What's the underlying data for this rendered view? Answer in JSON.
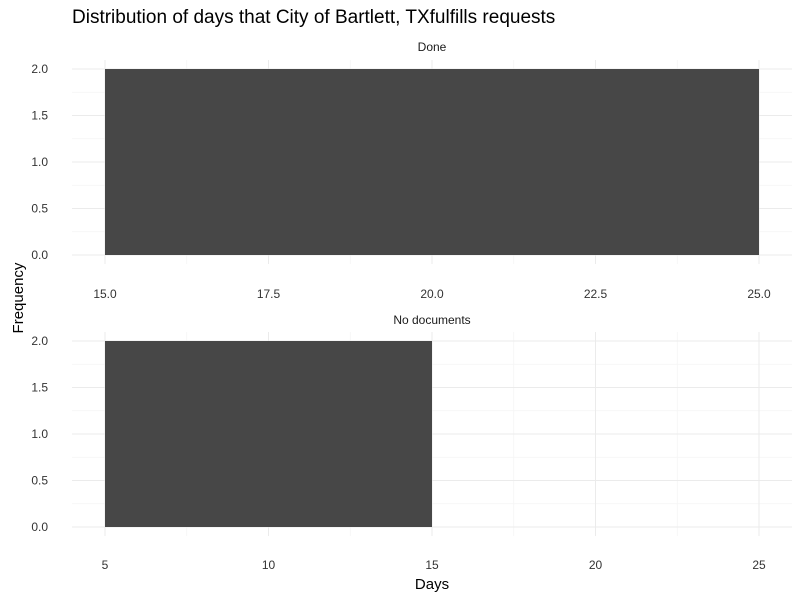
{
  "chart_data": {
    "type": "histogram",
    "title": "Distribution of days that City of Bartlett, TXfulfills requests",
    "xlabel": "Days",
    "ylabel": "Frequency",
    "grid": true,
    "panels": [
      {
        "strip": "Done",
        "bins": [
          {
            "x0": 15,
            "x1": 25,
            "count": 2
          }
        ],
        "xlim": [
          15,
          25
        ],
        "ylim": [
          0,
          2
        ],
        "xticks": [
          "15.0",
          "17.5",
          "20.0",
          "22.5",
          "25.0"
        ],
        "yticks": [
          "0.0",
          "0.5",
          "1.0",
          "1.5",
          "2.0"
        ]
      },
      {
        "strip": "No documents",
        "bins": [
          {
            "x0": 5,
            "x1": 15,
            "count": 2
          }
        ],
        "xlim": [
          5,
          25
        ],
        "ylim": [
          0,
          2
        ],
        "xticks": [
          "5",
          "10",
          "15",
          "20",
          "25"
        ],
        "yticks": [
          "0.0",
          "0.5",
          "1.0",
          "1.5",
          "2.0"
        ]
      }
    ],
    "colors": {
      "bar": "#474747",
      "grid": "#ebebeb"
    }
  }
}
